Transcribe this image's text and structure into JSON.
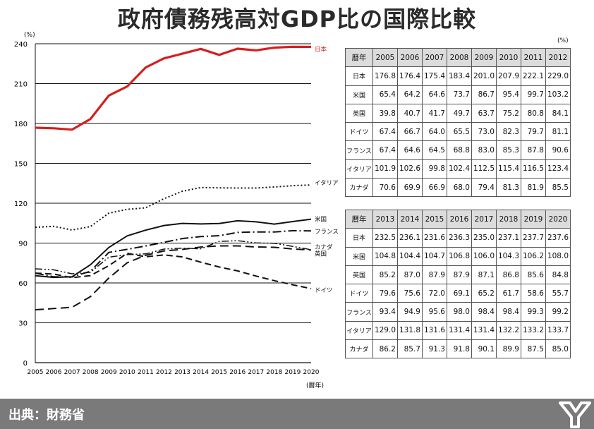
{
  "title": "政府債務残高対GDP比の国際比較",
  "footer": {
    "source": "出典：財務省"
  },
  "colors": {
    "japan": "#d42020",
    "footer_bg": "#7a7a7a",
    "header_bg": "#dcdcdc"
  },
  "chart_data": {
    "type": "line",
    "y_unit": "(%)",
    "x_unit": "(暦年)",
    "ylim": [
      0,
      240
    ],
    "yticks": [
      0,
      30,
      60,
      90,
      120,
      150,
      180,
      210,
      240
    ],
    "x": [
      "2005",
      "2006",
      "2007",
      "2008",
      "2009",
      "2010",
      "2011",
      "2012",
      "2013",
      "2014",
      "2015",
      "2016",
      "2017",
      "2018",
      "2019",
      "2020"
    ],
    "grid": "horizontal",
    "series": [
      {
        "name": "日本",
        "style": "solid-red",
        "values": [
          176.8,
          176.4,
          175.4,
          183.4,
          201.0,
          207.9,
          222.1,
          229.0,
          232.5,
          236.1,
          231.6,
          236.3,
          235.0,
          237.1,
          237.7,
          237.6
        ]
      },
      {
        "name": "米国",
        "style": "solid",
        "values": [
          65.4,
          64.2,
          64.6,
          73.7,
          86.7,
          95.4,
          99.7,
          103.2,
          104.8,
          104.4,
          104.7,
          106.8,
          106.0,
          104.3,
          106.2,
          108.0
        ]
      },
      {
        "name": "英国",
        "style": "long-dash",
        "values": [
          39.8,
          40.7,
          41.7,
          49.7,
          63.7,
          75.2,
          80.8,
          84.1,
          85.2,
          87.0,
          87.9,
          87.9,
          87.1,
          86.8,
          85.6,
          84.8
        ]
      },
      {
        "name": "ドイツ",
        "style": "dash",
        "values": [
          67.4,
          66.7,
          64.0,
          65.5,
          73.0,
          82.3,
          79.7,
          81.1,
          79.6,
          75.6,
          72.0,
          69.1,
          65.2,
          61.7,
          58.6,
          55.7
        ]
      },
      {
        "name": "フランス",
        "style": "dash-dot",
        "values": [
          67.4,
          64.6,
          64.5,
          68.8,
          83.0,
          85.3,
          87.8,
          90.6,
          93.4,
          94.9,
          95.6,
          98.0,
          98.4,
          98.4,
          99.3,
          99.2
        ]
      },
      {
        "name": "イタリア",
        "style": "dotted",
        "values": [
          101.9,
          102.6,
          99.8,
          102.4,
          112.5,
          115.4,
          116.5,
          123.4,
          129.0,
          131.8,
          131.6,
          131.4,
          131.4,
          132.2,
          133.2,
          133.7
        ]
      },
      {
        "name": "カナダ",
        "style": "dash-dot-dot",
        "values": [
          70.6,
          69.9,
          66.9,
          68.0,
          79.4,
          81.3,
          81.9,
          85.5,
          86.2,
          85.7,
          91.3,
          91.8,
          90.1,
          89.9,
          87.5,
          85.0
        ]
      }
    ]
  },
  "tables": {
    "unit": "(%)",
    "corner": "暦年",
    "countries": [
      "日本",
      "米国",
      "英国",
      "ドイツ",
      "フランス",
      "イタリア",
      "カナダ"
    ],
    "t1": {
      "years": [
        "2005",
        "2006",
        "2007",
        "2008",
        "2009",
        "2010",
        "2011",
        "2012"
      ],
      "rows": [
        [
          "176.8",
          "176.4",
          "175.4",
          "183.4",
          "201.0",
          "207.9",
          "222.1",
          "229.0"
        ],
        [
          "65.4",
          "64.2",
          "64.6",
          "73.7",
          "86.7",
          "95.4",
          "99.7",
          "103.2"
        ],
        [
          "39.8",
          "40.7",
          "41.7",
          "49.7",
          "63.7",
          "75.2",
          "80.8",
          "84.1"
        ],
        [
          "67.4",
          "66.7",
          "64.0",
          "65.5",
          "73.0",
          "82.3",
          "79.7",
          "81.1"
        ],
        [
          "67.4",
          "64.6",
          "64.5",
          "68.8",
          "83.0",
          "85.3",
          "87.8",
          "90.6"
        ],
        [
          "101.9",
          "102.6",
          "99.8",
          "102.4",
          "112.5",
          "115.4",
          "116.5",
          "123.4"
        ],
        [
          "70.6",
          "69.9",
          "66.9",
          "68.0",
          "79.4",
          "81.3",
          "81.9",
          "85.5"
        ]
      ]
    },
    "t2": {
      "years": [
        "2013",
        "2014",
        "2015",
        "2016",
        "2017",
        "2018",
        "2019",
        "2020"
      ],
      "rows": [
        [
          "232.5",
          "236.1",
          "231.6",
          "236.3",
          "235.0",
          "237.1",
          "237.7",
          "237.6"
        ],
        [
          "104.8",
          "104.4",
          "104.7",
          "106.8",
          "106.0",
          "104.3",
          "106.2",
          "108.0"
        ],
        [
          "85.2",
          "87.0",
          "87.9",
          "87.9",
          "87.1",
          "86.8",
          "85.6",
          "84.8"
        ],
        [
          "79.6",
          "75.6",
          "72.0",
          "69.1",
          "65.2",
          "61.7",
          "58.6",
          "55.7"
        ],
        [
          "93.4",
          "94.9",
          "95.6",
          "98.0",
          "98.4",
          "98.4",
          "99.3",
          "99.2"
        ],
        [
          "129.0",
          "131.8",
          "131.6",
          "131.4",
          "131.4",
          "132.2",
          "133.2",
          "133.7"
        ],
        [
          "86.2",
          "85.7",
          "91.3",
          "91.8",
          "90.1",
          "89.9",
          "87.5",
          "85.0"
        ]
      ]
    }
  }
}
